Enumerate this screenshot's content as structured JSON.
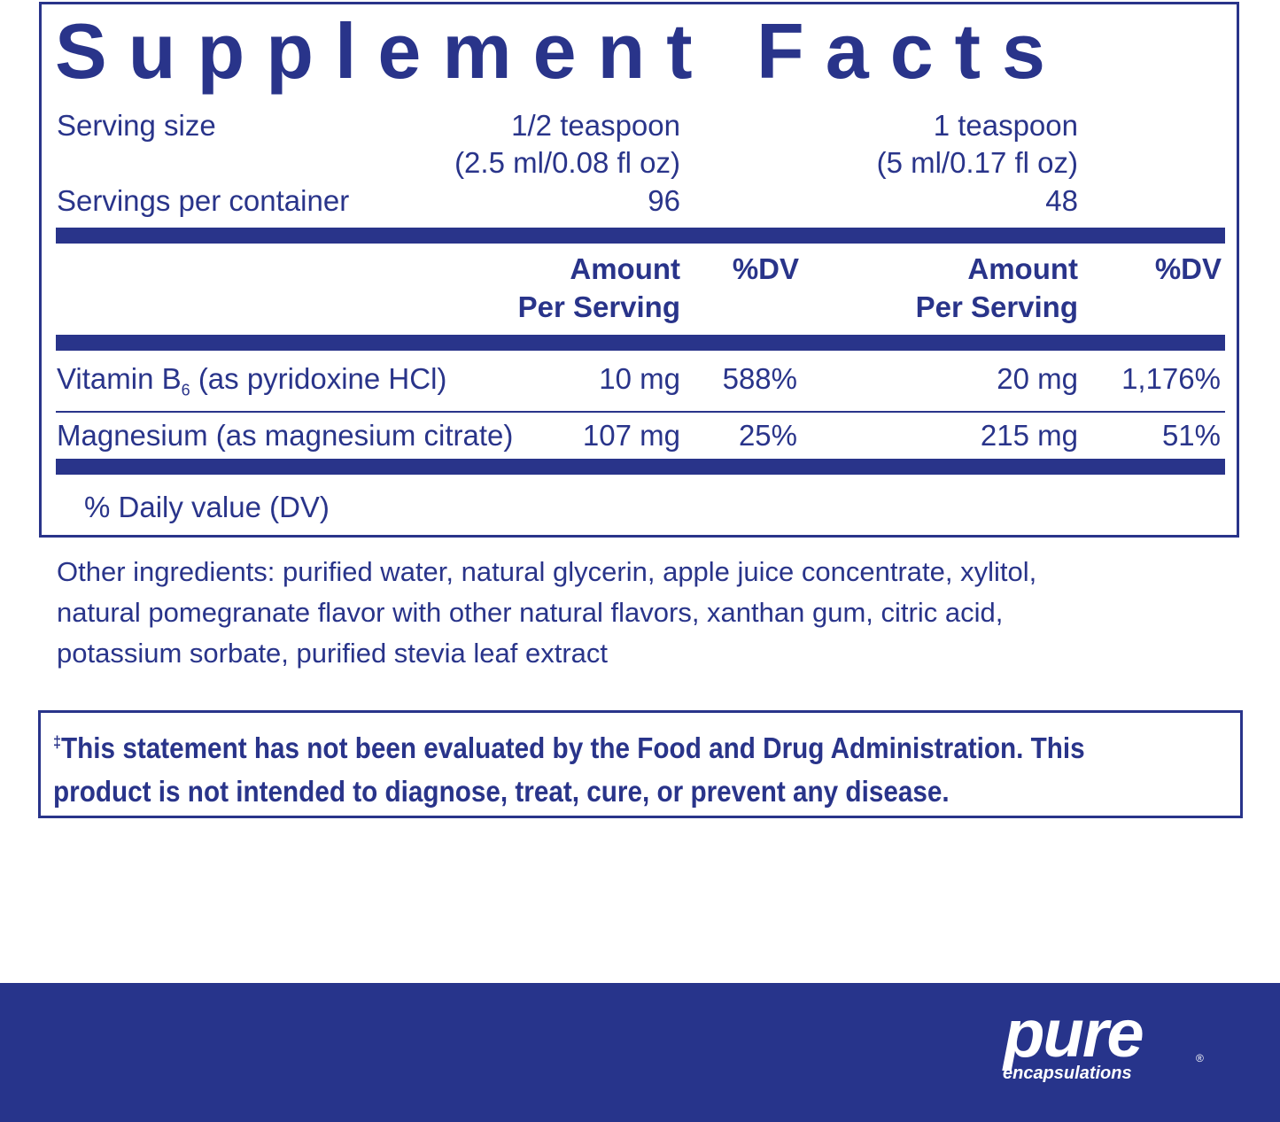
{
  "title": "Supplement Facts",
  "serving_size": {
    "label": "Serving size",
    "values": [
      [
        "1/2 teaspoon",
        "(2.5 ml/0.08 fl oz)"
      ],
      [
        "1 teaspoon",
        "(5 ml/0.17 fl oz)"
      ]
    ]
  },
  "servings_per_container": {
    "label": "Servings per container",
    "values": [
      "96",
      "48"
    ]
  },
  "columns": [
    [
      "Amount",
      "Per Serving"
    ],
    [
      "%DV"
    ],
    [
      "Amount",
      "Per Serving"
    ],
    [
      "%DV"
    ]
  ],
  "rows": [
    {
      "name": "Vitamin B",
      "name_sub": "6",
      "name_rest": "(as pyridoxine HCl)",
      "cells": [
        "10 mg",
        "588%",
        "20 mg",
        "1,176%"
      ]
    },
    {
      "name": "Magnesium (as magnesium citrate)",
      "cells": [
        "107 mg",
        "25%",
        "215 mg",
        "51%"
      ]
    }
  ],
  "footnote": "% Daily value (DV)",
  "other_ingredients": [
    "Other ingredients: purified water, natural glycerin, apple juice concentrate, xylitol,",
    "natural pomegranate flavor with other natural flavors, xanthan gum, citric acid,",
    "potassium sorbate, purified stevia leaf extract"
  ],
  "disclaimer": {
    "mark": "‡",
    "lines": [
      "This statement has not been evaluated by the Food and Drug Administration. This",
      "product is not intended to diagnose, treat, cure, or prevent any disease."
    ]
  },
  "brand": {
    "name": "pure",
    "sub": "encapsulations",
    "registered": "®"
  }
}
